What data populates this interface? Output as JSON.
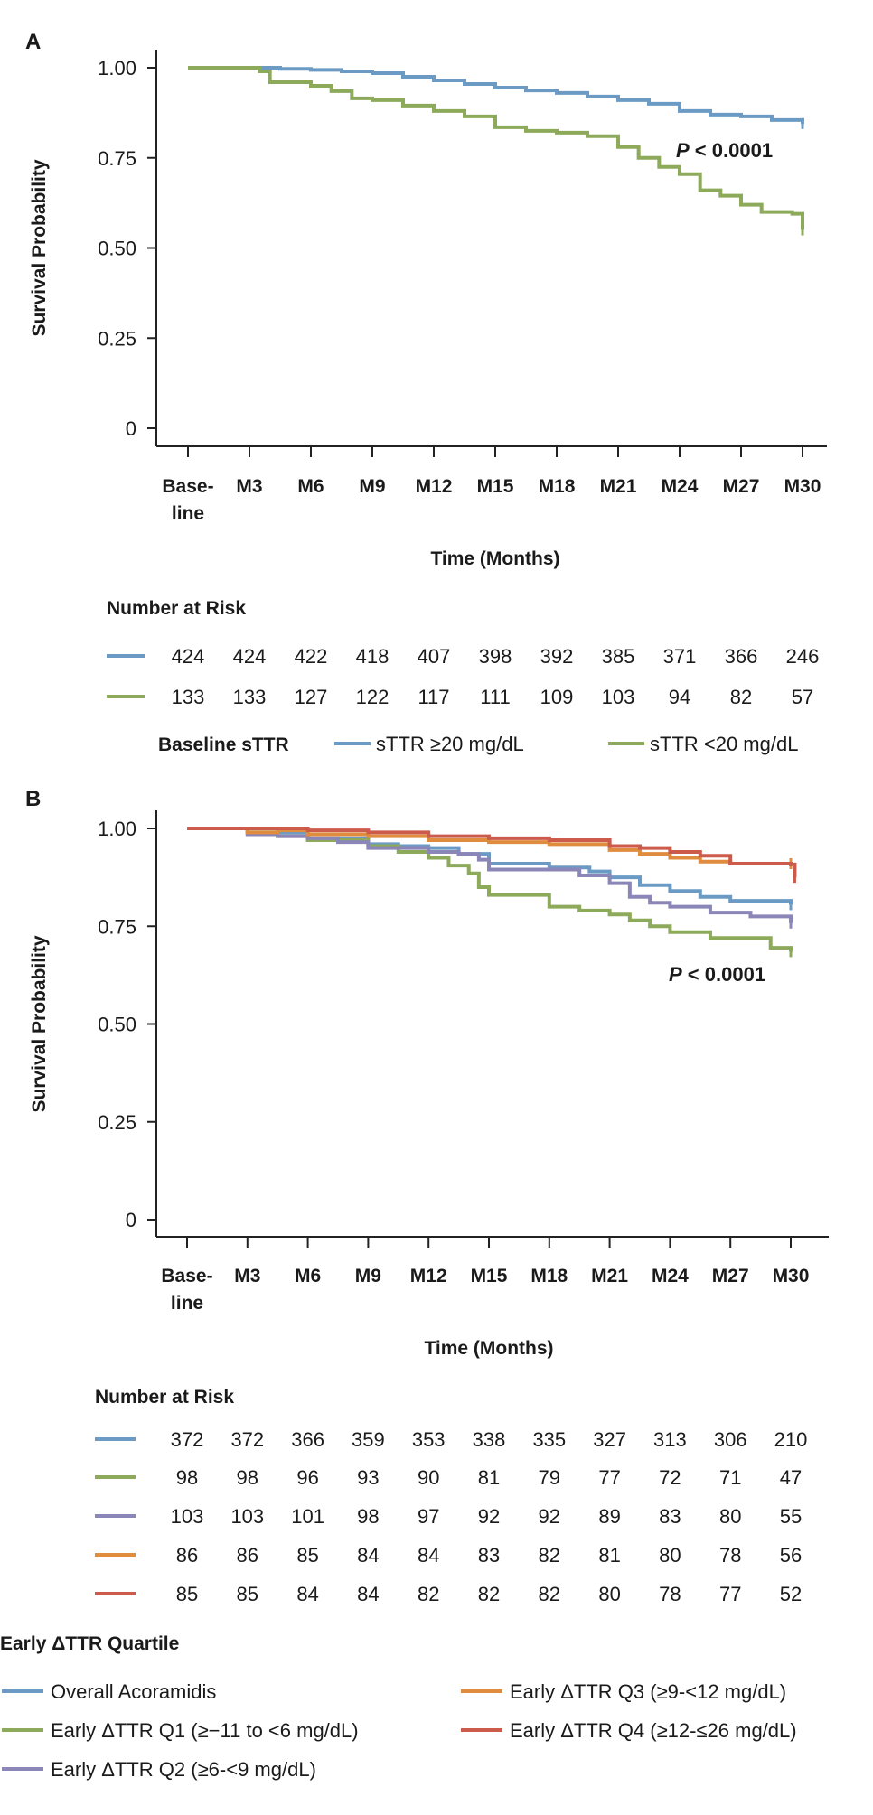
{
  "chart_data": [
    {
      "type": "line",
      "panel": "A",
      "ylabel": "Survival Probability",
      "xlabel": "Time (Months)",
      "ylim": [
        0,
        1
      ],
      "yticks": [
        "1.00",
        "0.75",
        "0.50",
        "0.25",
        "0"
      ],
      "ytick_values": [
        1.0,
        0.75,
        0.5,
        0.25,
        0
      ],
      "xticks": [
        [
          "Base-",
          "line"
        ],
        [
          "M3"
        ],
        [
          "M6"
        ],
        [
          "M9"
        ],
        [
          "M12"
        ],
        [
          "M15"
        ],
        [
          "M18"
        ],
        [
          "M21"
        ],
        [
          "M24"
        ],
        [
          "M27"
        ],
        [
          "M30"
        ]
      ],
      "xlim": [
        0,
        30
      ],
      "annotation": {
        "italic": "P",
        "text": " < 0.0001"
      },
      "series": [
        {
          "name": "sTTR ≥20 mg/dL",
          "color": "#6b9bc4",
          "x": [
            0,
            3,
            4.5,
            6,
            7.5,
            9,
            10.5,
            12,
            13.5,
            15,
            16.5,
            18,
            19.5,
            21,
            22.5,
            24,
            25.5,
            27,
            28.5,
            30
          ],
          "y": [
            1.0,
            1.0,
            0.997,
            0.994,
            0.99,
            0.985,
            0.975,
            0.965,
            0.955,
            0.945,
            0.937,
            0.93,
            0.92,
            0.91,
            0.9,
            0.88,
            0.87,
            0.865,
            0.855,
            0.845
          ]
        },
        {
          "name": "sTTR <20 mg/dL",
          "color": "#8daa5b",
          "x": [
            0,
            3,
            3.5,
            4,
            6,
            7,
            8,
            9,
            10.5,
            12,
            13.5,
            15,
            16.5,
            18,
            19.5,
            21,
            22,
            23,
            24,
            25,
            26,
            27,
            28,
            29.5,
            30
          ],
          "y": [
            1.0,
            1.0,
            0.99,
            0.96,
            0.95,
            0.935,
            0.915,
            0.91,
            0.895,
            0.88,
            0.865,
            0.835,
            0.825,
            0.82,
            0.81,
            0.78,
            0.75,
            0.725,
            0.705,
            0.66,
            0.645,
            0.62,
            0.6,
            0.595,
            0.55
          ]
        }
      ],
      "number_at_risk": {
        "title": "Number at Risk",
        "rows": [
          {
            "color": "#6b9bc4",
            "values": [
              424,
              424,
              422,
              418,
              407,
              398,
              392,
              385,
              371,
              366,
              246
            ]
          },
          {
            "color": "#8daa5b",
            "values": [
              133,
              133,
              127,
              122,
              117,
              111,
              109,
              103,
              94,
              82,
              57
            ]
          }
        ]
      },
      "legend": {
        "title": "Baseline sTTR",
        "items": [
          {
            "label": "sTTR ≥20 mg/dL",
            "color": "#6b9bc4"
          },
          {
            "label": "sTTR <20 mg/dL",
            "color": "#8daa5b"
          }
        ]
      }
    },
    {
      "type": "line",
      "panel": "B",
      "ylabel": "Survival Probability",
      "xlabel": "Time (Months)",
      "ylim": [
        0,
        1
      ],
      "yticks": [
        "1.00",
        "0.75",
        "0.50",
        "0.25",
        "0"
      ],
      "ytick_values": [
        1.0,
        0.75,
        0.5,
        0.25,
        0
      ],
      "xticks": [
        [
          "Base-",
          "line"
        ],
        [
          "M3"
        ],
        [
          "M6"
        ],
        [
          "M9"
        ],
        [
          "M12"
        ],
        [
          "M15"
        ],
        [
          "M18"
        ],
        [
          "M21"
        ],
        [
          "M24"
        ],
        [
          "M27"
        ],
        [
          "M30"
        ]
      ],
      "xlim": [
        0,
        30
      ],
      "annotation": {
        "italic": "P",
        "text": " < 0.0001"
      },
      "series": [
        {
          "name": "Overall Acoramidis",
          "color": "#6b9bc4",
          "x": [
            0,
            3,
            6,
            9,
            10.5,
            12,
            13.5,
            15,
            18,
            20,
            21,
            22.5,
            24,
            25.5,
            27,
            30
          ],
          "y": [
            1.0,
            0.99,
            0.975,
            0.96,
            0.955,
            0.95,
            0.935,
            0.91,
            0.9,
            0.89,
            0.875,
            0.855,
            0.84,
            0.825,
            0.815,
            0.805
          ]
        },
        {
          "name": "Early ΔTTR Q1 (≥−11 to <6  mg/dL)",
          "color": "#8daa5b",
          "x": [
            0,
            3,
            4.5,
            6,
            9,
            10.5,
            12,
            13,
            14,
            14.5,
            15,
            16.5,
            18,
            19.5,
            21,
            22,
            23,
            24,
            26,
            28,
            29,
            30
          ],
          "y": [
            1.0,
            0.99,
            0.98,
            0.97,
            0.955,
            0.94,
            0.925,
            0.905,
            0.885,
            0.85,
            0.83,
            0.83,
            0.8,
            0.79,
            0.78,
            0.765,
            0.75,
            0.735,
            0.72,
            0.72,
            0.695,
            0.685
          ]
        },
        {
          "name": "Early ΔTTR Q2 (≥6-<9  mg/dL)",
          "color": "#8b86b8",
          "x": [
            0,
            3,
            4.5,
            6,
            7.5,
            9,
            12,
            13.5,
            14.5,
            15,
            18,
            19.5,
            21,
            22,
            23,
            24,
            26,
            28,
            30
          ],
          "y": [
            1.0,
            0.985,
            0.98,
            0.975,
            0.965,
            0.95,
            0.94,
            0.935,
            0.92,
            0.895,
            0.895,
            0.88,
            0.86,
            0.825,
            0.81,
            0.8,
            0.785,
            0.775,
            0.758
          ]
        },
        {
          "name": "Early ΔTTR Q3 (≥9-<12 mg/dL)",
          "color": "#e08c3e",
          "x": [
            0,
            3,
            4.5,
            6,
            9,
            12,
            15,
            18,
            21,
            22.5,
            24,
            25.5,
            27,
            30
          ],
          "y": [
            1.0,
            0.99,
            0.995,
            0.985,
            0.98,
            0.97,
            0.965,
            0.96,
            0.945,
            0.935,
            0.925,
            0.915,
            0.91,
            0.91
          ]
        },
        {
          "name": "Early ΔTTR Q4 (≥12-≤26  mg/dL)",
          "color": "#cc5b4c",
          "x": [
            0,
            6,
            9,
            12,
            15,
            18,
            21,
            22.5,
            24,
            25.5,
            27,
            30,
            30.2
          ],
          "y": [
            1.0,
            0.995,
            0.99,
            0.98,
            0.975,
            0.97,
            0.955,
            0.95,
            0.94,
            0.93,
            0.91,
            0.908,
            0.875
          ]
        }
      ],
      "number_at_risk": {
        "title": "Number at Risk",
        "rows": [
          {
            "color": "#6b9bc4",
            "values": [
              372,
              372,
              366,
              359,
              353,
              338,
              335,
              327,
              313,
              306,
              210
            ]
          },
          {
            "color": "#8daa5b",
            "values": [
              98,
              98,
              96,
              93,
              90,
              81,
              79,
              77,
              72,
              71,
              47
            ]
          },
          {
            "color": "#8b86b8",
            "values": [
              103,
              103,
              101,
              98,
              97,
              92,
              92,
              89,
              83,
              80,
              55
            ]
          },
          {
            "color": "#e08c3e",
            "values": [
              86,
              86,
              85,
              84,
              84,
              83,
              82,
              81,
              80,
              78,
              56
            ]
          },
          {
            "color": "#cc5b4c",
            "values": [
              85,
              85,
              84,
              84,
              82,
              82,
              82,
              80,
              78,
              77,
              52
            ]
          }
        ]
      },
      "legend": {
        "title": "Early ΔTTR Quartile",
        "items": [
          {
            "label": "Overall Acoramidis",
            "color": "#6b9bc4"
          },
          {
            "label": "Early ΔTTR Q1 (≥−11 to <6  mg/dL)",
            "color": "#8daa5b"
          },
          {
            "label": "Early ΔTTR Q2 (≥6-<9  mg/dL)",
            "color": "#8b86b8"
          },
          {
            "label": "Early ΔTTR Q3 (≥9-<12 mg/dL)",
            "color": "#e08c3e"
          },
          {
            "label": "Early ΔTTR Q4 (≥12-≤26  mg/dL)",
            "color": "#cc5b4c"
          }
        ]
      }
    }
  ]
}
